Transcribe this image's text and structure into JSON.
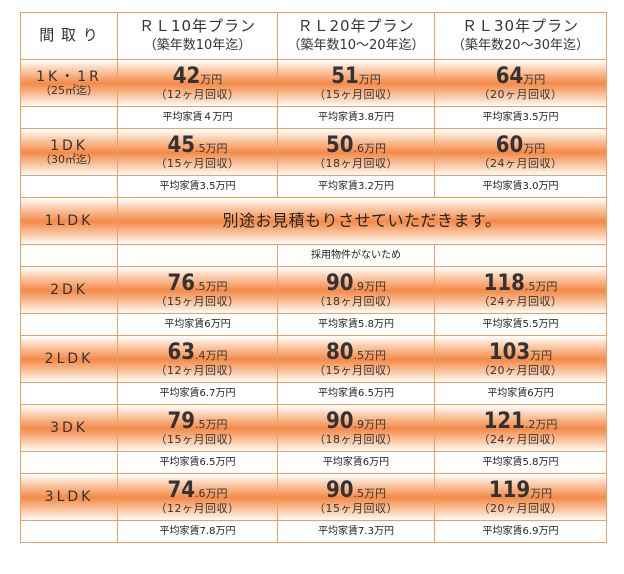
{
  "header": {
    "type_label": "間 取 り",
    "plans": [
      {
        "name": "ＲＬ10年プラン",
        "sub": "（築年数10年迄）"
      },
      {
        "name": "ＲＬ20年プラン",
        "sub": "（築年数10～20年迄）"
      },
      {
        "name": "ＲＬ30年プラン",
        "sub": "（築年数20～30年迄）"
      }
    ]
  },
  "rows": [
    {
      "type": "1K・1R",
      "area": "（25㎡迄）",
      "cells": [
        {
          "big": "42",
          "frac": "",
          "unit": "万円",
          "rec": "（12ヶ月回収）",
          "avg": "平均家賃４万円"
        },
        {
          "big": "51",
          "frac": "",
          "unit": "万円",
          "rec": "（15ヶ月回収）",
          "avg": "平均家賃3.8万円"
        },
        {
          "big": "64",
          "frac": "",
          "unit": "万円",
          "rec": "（20ヶ月回収）",
          "avg": "平均家賃3.5万円"
        }
      ]
    },
    {
      "type": "1DK",
      "area": "（30㎡迄）",
      "cells": [
        {
          "big": "45",
          "frac": ".5",
          "unit": "万円",
          "rec": "（15ヶ月回収）",
          "avg": "平均家賃3.5万円"
        },
        {
          "big": "50",
          "frac": ".6",
          "unit": "万円",
          "rec": "（18ヶ月回収）",
          "avg": "平均家賃3.2万円"
        },
        {
          "big": "60",
          "frac": "",
          "unit": "万円",
          "rec": "（24ヶ月回収）",
          "avg": "平均家賃3.0万円"
        }
      ]
    },
    {
      "type": "2DK",
      "area": "",
      "cells": [
        {
          "big": "76",
          "frac": ".5",
          "unit": "万円",
          "rec": "（15ヶ月回収）",
          "avg": "平均家賃6万円"
        },
        {
          "big": "90",
          "frac": ".9",
          "unit": "万円",
          "rec": "（18ヶ月回収）",
          "avg": "平均家賃5.8万円"
        },
        {
          "big": "118",
          "frac": ".5",
          "unit": "万円",
          "rec": "（24ヶ月回収）",
          "avg": "平均家賃5.5万円"
        }
      ]
    },
    {
      "type": "2LDK",
      "area": "",
      "cells": [
        {
          "big": "63",
          "frac": ".4",
          "unit": "万円",
          "rec": "（12ヶ月回収）",
          "avg": "平均家賃6.7万円"
        },
        {
          "big": "80",
          "frac": ".5",
          "unit": "万円",
          "rec": "（15ヶ月回収）",
          "avg": "平均家賃6.5万円"
        },
        {
          "big": "103",
          "frac": "",
          "unit": "万円",
          "rec": "（20ヶ月回収）",
          "avg": "平均家賃6万円"
        }
      ]
    },
    {
      "type": "3DK",
      "area": "",
      "cells": [
        {
          "big": "79",
          "frac": ".5",
          "unit": "万円",
          "rec": "（15ヶ月回収）",
          "avg": "平均家賃6.5万円"
        },
        {
          "big": "90",
          "frac": ".9",
          "unit": "万円",
          "rec": "（18ヶ月回収）",
          "avg": "平均家賃6万円"
        },
        {
          "big": "121",
          "frac": ".2",
          "unit": "万円",
          "rec": "（24ヶ月回収）",
          "avg": "平均家賃5.8万円"
        }
      ]
    },
    {
      "type": "3LDK",
      "area": "",
      "cells": [
        {
          "big": "74",
          "frac": ".6",
          "unit": "万円",
          "rec": "（12ヶ月回収）",
          "avg": "平均家賃7.8万円"
        },
        {
          "big": "90",
          "frac": ".5",
          "unit": "万円",
          "rec": "（15ヶ月回収）",
          "avg": "平均家賃7.3万円"
        },
        {
          "big": "119",
          "frac": "",
          "unit": "万円",
          "rec": "（20ヶ月回収）",
          "avg": "平均家賃6.9万円"
        }
      ]
    }
  ],
  "special": {
    "type": "1LDK",
    "message": "別途お見積もりさせていただきます。",
    "note": "採用物件がないため"
  },
  "colors": {
    "border": "#f0a060",
    "band": "#f48a48"
  }
}
